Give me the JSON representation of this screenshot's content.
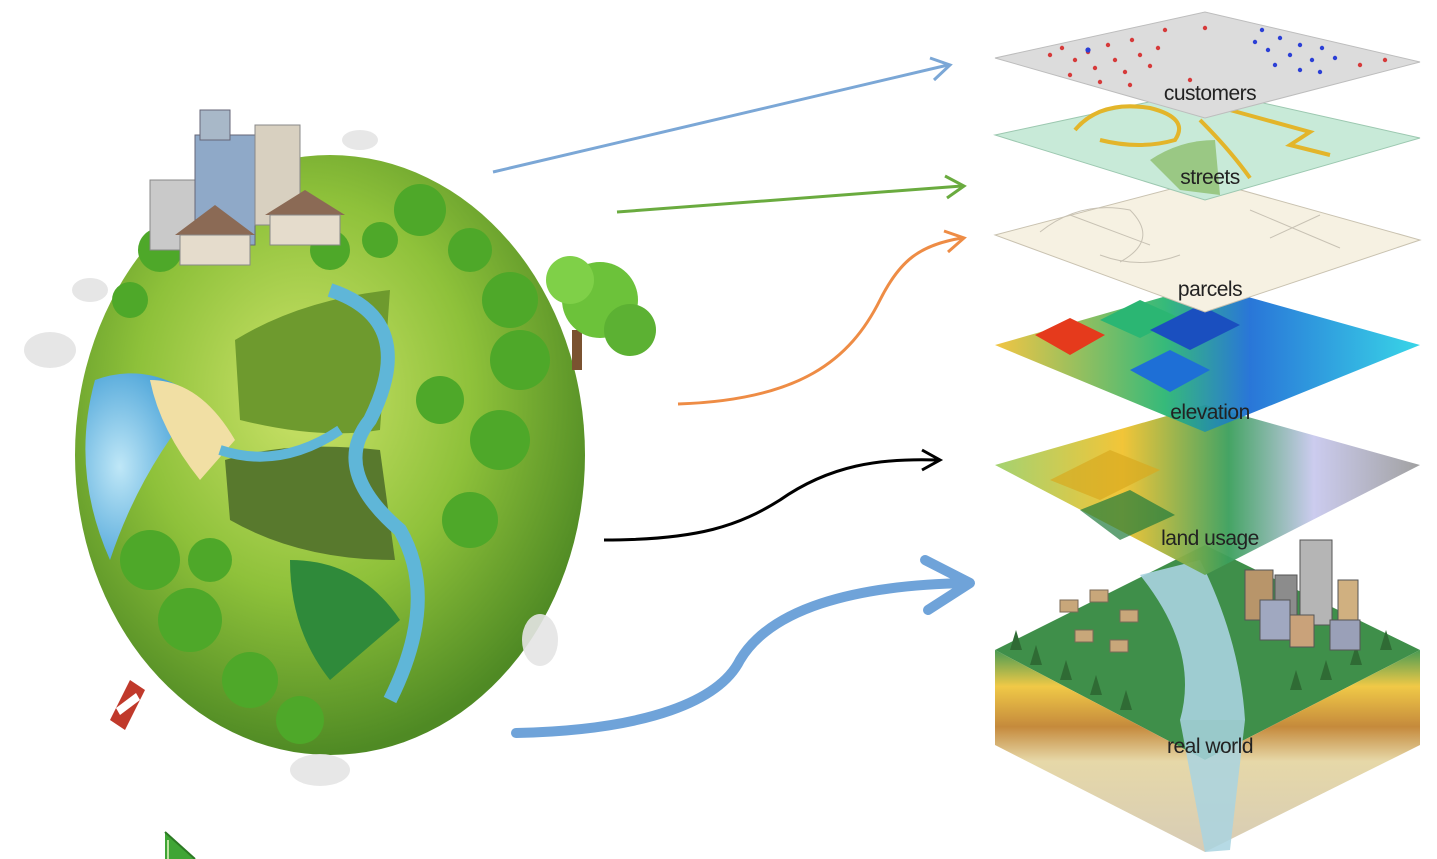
{
  "layers": [
    {
      "label": "customers"
    },
    {
      "label": "streets"
    },
    {
      "label": "parcels"
    },
    {
      "label": "elevation"
    },
    {
      "label": "land usage"
    },
    {
      "label": "real world"
    }
  ],
  "arrow_colors": {
    "customers": "#7ba7d6",
    "streets": "#6aab3f",
    "parcels": "#ee8c45",
    "elevation": "#000000",
    "real_world": "#6fa3d9"
  },
  "icons": [
    "globe-illustration",
    "slide-corner-arrow-icon"
  ]
}
